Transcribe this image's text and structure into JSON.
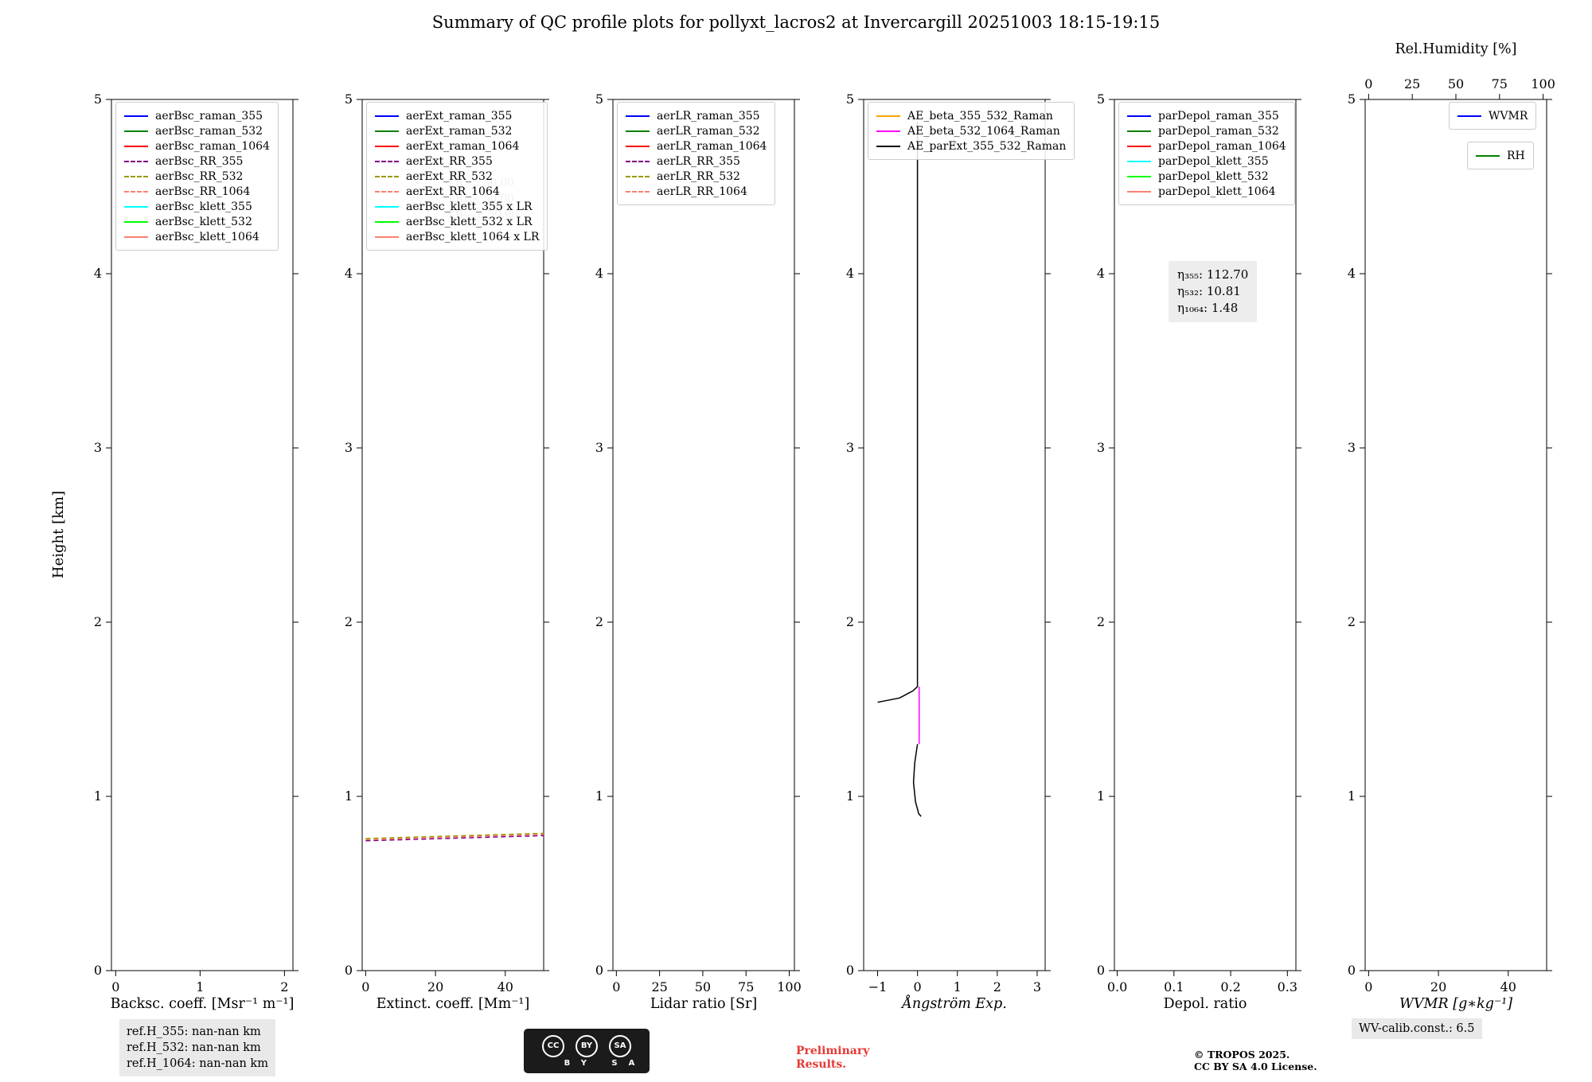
{
  "title": "Summary of QC profile plots for pollyxt_lacros2 at Invercargill 20251003 18:15-19:15",
  "chart_common": {
    "ylabel": "Height [km]",
    "ylim": [
      0,
      5
    ],
    "yticks": [
      0,
      1,
      2,
      3,
      4,
      5
    ],
    "ytick_labels": [
      "0",
      "1",
      "2",
      "3",
      "4",
      "5"
    ],
    "grid": false
  },
  "chart_data": [
    {
      "type": "line",
      "name": "backscatter",
      "xlabel": "Backsc. coeff. [Msr⁻¹ m⁻¹]",
      "xlim": [
        -0.05,
        2.1
      ],
      "xtick_vals": [
        0,
        1,
        2
      ],
      "xtick_labels": [
        "0",
        "1",
        "2"
      ],
      "legends": [
        [
          {
            "label": "aerBsc_raman_355",
            "color": "#0000ff",
            "dash": false
          },
          {
            "label": "aerBsc_raman_532",
            "color": "#008000",
            "dash": false
          },
          {
            "label": "aerBsc_raman_1064",
            "color": "#ff0000",
            "dash": false
          },
          {
            "label": "aerBsc_RR_355",
            "color": "#800080",
            "dash": true
          },
          {
            "label": "aerBsc_RR_532",
            "color": "#999900",
            "dash": true
          },
          {
            "label": "aerBsc_RR_1064",
            "color": "#fa8072",
            "dash": true
          },
          {
            "label": "aerBsc_klett_355",
            "color": "#00ffff",
            "dash": false
          },
          {
            "label": "aerBsc_klett_532",
            "color": "#00ff00",
            "dash": false
          },
          {
            "label": "aerBsc_klett_1064",
            "color": "#fa8072",
            "dash": false
          }
        ]
      ],
      "series": []
    },
    {
      "type": "line",
      "name": "extinction",
      "xlabel": "Extinct. coeff. [Mm⁻¹]",
      "xlim": [
        -1,
        51
      ],
      "xtick_vals": [
        0,
        20,
        40
      ],
      "xtick_labels": [
        "0",
        "20",
        "40"
      ],
      "annotations": [
        "LR₃₅₅: 50.00",
        "LR₅₃₂: 50.00",
        "LR₁₀₆₄: 50.00"
      ],
      "legends": [
        [
          {
            "label": "aerExt_raman_355",
            "color": "#0000ff",
            "dash": false
          },
          {
            "label": "aerExt_raman_532",
            "color": "#008000",
            "dash": false
          },
          {
            "label": "aerExt_raman_1064",
            "color": "#ff0000",
            "dash": false
          },
          {
            "label": "aerExt_RR_355",
            "color": "#800080",
            "dash": true
          },
          {
            "label": "aerExt_RR_532",
            "color": "#999900",
            "dash": true
          },
          {
            "label": "aerExt_RR_1064",
            "color": "#fa8072",
            "dash": true
          },
          {
            "label": "aerBsc_klett_355 x LR",
            "color": "#00ffff",
            "dash": false
          },
          {
            "label": "aerBsc_klett_532 x LR",
            "color": "#00ff00",
            "dash": false
          },
          {
            "label": "aerBsc_klett_1064 x LR",
            "color": "#fa8072",
            "dash": false
          }
        ]
      ],
      "series": [
        {
          "name": "aerExt_RR_355",
          "color": "#800080",
          "dash": true,
          "points": [
            [
              0,
              0.745
            ],
            [
              51,
              0.775
            ]
          ]
        },
        {
          "name": "aerExt_RR_1064",
          "color": "#fa8072",
          "dash": true,
          "points": [
            [
              0,
              0.752
            ],
            [
              51,
              0.782
            ]
          ]
        },
        {
          "name": "aerExt_RR_532",
          "color": "#999900",
          "dash": true,
          "points": [
            [
              0,
              0.758
            ],
            [
              51,
              0.788
            ]
          ]
        }
      ]
    },
    {
      "type": "line",
      "name": "lidar-ratio",
      "xlabel": "Lidar ratio [Sr]",
      "xlim": [
        -2,
        103
      ],
      "xtick_vals": [
        0,
        25,
        50,
        75,
        100
      ],
      "xtick_labels": [
        "0",
        "25",
        "50",
        "75",
        "100"
      ],
      "legends": [
        [
          {
            "label": "aerLR_raman_355",
            "color": "#0000ff",
            "dash": false
          },
          {
            "label": "aerLR_raman_532",
            "color": "#008000",
            "dash": false
          },
          {
            "label": "aerLR_raman_1064",
            "color": "#ff0000",
            "dash": false
          },
          {
            "label": "aerLR_RR_355",
            "color": "#800080",
            "dash": true
          },
          {
            "label": "aerLR_RR_532",
            "color": "#999900",
            "dash": true
          },
          {
            "label": "aerLR_RR_1064",
            "color": "#fa8072",
            "dash": true
          }
        ]
      ],
      "series": []
    },
    {
      "type": "line",
      "name": "angstroem-exponent",
      "xlabel": "Ångström Exp.",
      "xlim": [
        -1.35,
        3.2
      ],
      "xtick_vals": [
        -1,
        0,
        1,
        2,
        3
      ],
      "xtick_labels": [
        "−1",
        "0",
        "1",
        "2",
        "3"
      ],
      "legends": [
        [
          {
            "label": "AE_beta_355_532_Raman",
            "color": "#ffa500",
            "dash": false
          },
          {
            "label": "AE_beta_532_1064_Raman",
            "color": "#ff00ff",
            "dash": false
          },
          {
            "label": "AE_parExt_355_532_Raman",
            "color": "#000000",
            "dash": false
          }
        ]
      ],
      "series": [
        {
          "name": "AE_beta_532_1064_Raman",
          "color": "#ff00ff",
          "dash": false,
          "points": [
            [
              0.04,
              1.63
            ],
            [
              0.04,
              1.3
            ]
          ]
        },
        {
          "name": "AE_parExt_355_532_Raman",
          "color": "#000000",
          "dash": false,
          "points": [
            [
              -1.0,
              1.54
            ],
            [
              -0.45,
              1.565
            ],
            [
              -0.12,
              1.605
            ],
            [
              0,
              1.63
            ],
            [
              0,
              4.87
            ]
          ]
        },
        {
          "name": "AE_parExt_355_532_Raman",
          "color": "#000000",
          "dash": false,
          "points": [
            [
              0,
              1.3
            ],
            [
              -0.07,
              1.19
            ],
            [
              -0.1,
              1.08
            ],
            [
              -0.05,
              0.97
            ],
            [
              0.03,
              0.9
            ],
            [
              0.09,
              0.885
            ]
          ]
        }
      ]
    },
    {
      "type": "line",
      "name": "depolarization",
      "xlabel": "Depol. ratio",
      "xlim": [
        -0.005,
        0.315
      ],
      "xtick_vals": [
        0,
        0.1,
        0.2,
        0.3
      ],
      "xtick_labels": [
        "0.0",
        "0.1",
        "0.2",
        "0.3"
      ],
      "annotations": [
        "η₃₅₅: 112.70",
        "η₅₃₂: 10.81",
        "η₁₀₆₄: 1.48"
      ],
      "legends": [
        [
          {
            "label": "parDepol_raman_355",
            "color": "#0000ff",
            "dash": false
          },
          {
            "label": "parDepol_raman_532",
            "color": "#008000",
            "dash": false
          },
          {
            "label": "parDepol_raman_1064",
            "color": "#ff0000",
            "dash": false
          },
          {
            "label": "parDepol_klett_355",
            "color": "#00ffff",
            "dash": false
          },
          {
            "label": "parDepol_klett_532",
            "color": "#00ff00",
            "dash": false
          },
          {
            "label": "parDepol_klett_1064",
            "color": "#fa8072",
            "dash": false
          }
        ]
      ],
      "series": []
    },
    {
      "type": "line",
      "name": "wvmr",
      "xlabel": "WVMR [g∗kg⁻¹]",
      "xlim": [
        -1,
        51
      ],
      "xtick_vals": [
        0,
        20,
        40
      ],
      "xtick_labels": [
        "0",
        "20",
        "40"
      ],
      "top_axis": {
        "label": "Rel.Humidity [%]",
        "lim": [
          -2,
          102
        ],
        "tick_vals": [
          0,
          25,
          50,
          75,
          100
        ],
        "tick_labels": [
          "0",
          "25",
          "50",
          "75",
          "100"
        ]
      },
      "legends": [
        [
          {
            "label": "WVMR",
            "color": "#0000ff",
            "dash": false
          }
        ],
        [
          {
            "label": "RH",
            "color": "#008000",
            "dash": false
          }
        ]
      ],
      "series": []
    }
  ],
  "footer": {
    "refh_lines": [
      "ref.H_355: nan-nan km",
      "ref.H_532: nan-nan km",
      "ref.H_1064: nan-nan km"
    ],
    "badge": {
      "icons": [
        "CC",
        "BY",
        "SA"
      ],
      "caption": "BY SA"
    },
    "preliminary": [
      "Preliminary",
      "Results."
    ],
    "credit_lines": [
      "© TROPOS 2025.",
      "CC BY SA 4.0 License."
    ],
    "wv_calib": "WV-calib.const.: 6.5"
  }
}
